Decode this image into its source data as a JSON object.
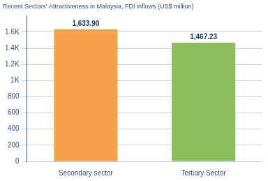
{
  "chart_data": {
    "type": "bar",
    "title": "Recent Sectors’ Attractiveness in Malaysia, FDI inflows (US$ million)",
    "categories": [
      "Secondary sector",
      "Tertiary Sector"
    ],
    "values": [
      1633.9,
      1467.23
    ],
    "value_labels": [
      "1,633.90",
      "1,467.23"
    ],
    "data_labels": true,
    "colors": [
      "#F5A14A",
      "#8BBD5A"
    ],
    "ylim": [
      0,
      1800
    ],
    "yticks": [
      0,
      200,
      400,
      600,
      800,
      {
        "value": 1000,
        "label": "1K"
      },
      {
        "value": 1200,
        "label": "1.2K"
      },
      {
        "value": 1400,
        "label": "1.4K"
      },
      {
        "value": 1600,
        "label": "1.6K"
      }
    ],
    "grid": true
  }
}
